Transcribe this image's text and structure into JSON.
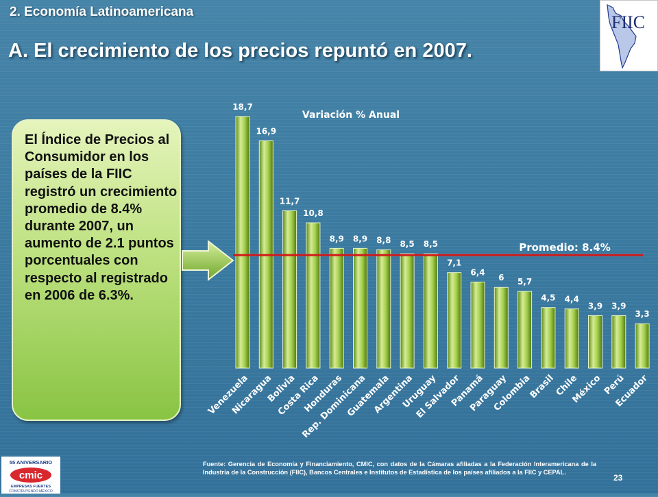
{
  "slide": {
    "section": "2. Economía Latinoamericana",
    "title": "A. El crecimiento de los precios repuntó en 2007.",
    "textbox": "El Índice de Precios al Consumidor en los países de la FIIC registró un crecimiento promedio de 8.4% durante 2007, un aumento de 2.1 puntos porcentuales con respecto al registrado en 2006 de 6.3%.",
    "footnote": "Fuente: Gerencia de Economía y Financiamiento, CMIC, con datos de la Cámaras afiliadas a la Federación Interamericana de la Industria de la Construcción (FIIC), Bancos Centrales e Institutos de Estadística de los países afiliados a la FIIC y CEPAL.",
    "page_number": "23",
    "logo_text": "FIIC",
    "cmic_logo": {
      "top": "55 ANIVERSARIO",
      "name": "cmic",
      "bottom1": "EMPRESAS FUERTES",
      "bottom2": "CONSTRUYENDO MÉXICO"
    }
  },
  "chart_data": {
    "type": "bar",
    "title": "Variación % Anual",
    "categories": [
      "Venezuela",
      "Nicaragua",
      "Bolivia",
      "Costa Rica",
      "Honduras",
      "Rep. Dominicana",
      "Guatemala",
      "Argentina",
      "Uruguay",
      "El Salvador",
      "Panamá",
      "Paraguay",
      "Colombia",
      "Brasil",
      "Chile",
      "México",
      "Perú",
      "Ecuador"
    ],
    "values": [
      18.7,
      16.9,
      11.7,
      10.8,
      8.9,
      8.9,
      8.8,
      8.5,
      8.5,
      7.1,
      6.4,
      6,
      5.7,
      4.5,
      4.4,
      3.9,
      3.9,
      3.3
    ],
    "labels": [
      "18,7",
      "16,9",
      "11,7",
      "10,8",
      "8,9",
      "8,9",
      "8,8",
      "8,5",
      "8,5",
      "7,1",
      "6,4",
      "6",
      "5,7",
      "4,5",
      "4,4",
      "3,9",
      "3,9",
      "3,3"
    ],
    "average": 8.4,
    "average_label": "Promedio: 8.4%",
    "colors": {
      "bar_light": "#d9ee9a",
      "bar_dark": "#6e9c1e",
      "average_line": "#d11a1a"
    }
  }
}
